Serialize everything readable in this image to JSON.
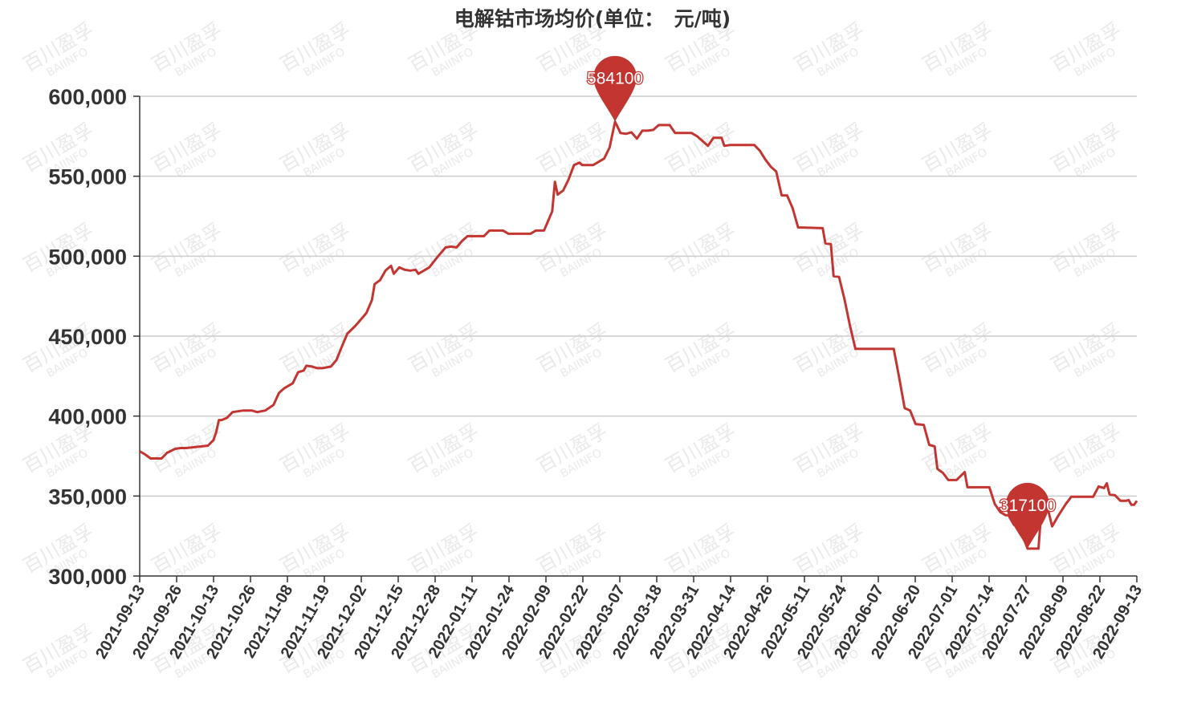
{
  "chart_data": {
    "type": "line",
    "title": "电解钴市场均价(单位：　元/吨)",
    "xlabel": "",
    "ylabel": "",
    "ylim": [
      300000,
      600000
    ],
    "yticks": [
      "300,000",
      "350,000",
      "400,000",
      "450,000",
      "500,000",
      "550,000",
      "600,000"
    ],
    "xticks": [
      "2021-09-13",
      "2021-09-26",
      "2021-10-13",
      "2021-10-26",
      "2021-11-08",
      "2021-11-19",
      "2021-12-02",
      "2021-12-15",
      "2021-12-28",
      "2022-01-11",
      "2022-01-24",
      "2022-02-09",
      "2022-02-22",
      "2022-03-07",
      "2022-03-18",
      "2022-03-31",
      "2022-04-14",
      "2022-04-26",
      "2022-05-11",
      "2022-05-24",
      "2022-06-07",
      "2022-06-20",
      "2022-07-01",
      "2022-07-14",
      "2022-07-27",
      "2022-08-09",
      "2022-08-22",
      "2022-09-13"
    ],
    "grid": true,
    "legend": "none",
    "line_color": "#c23531",
    "series": [
      {
        "name": "",
        "points": [
          [
            "2021-09-13",
            378000
          ],
          [
            "2021-09-15",
            376000
          ],
          [
            "2021-09-17",
            373500
          ],
          [
            "2021-09-21",
            373500
          ],
          [
            "2021-09-23",
            377000
          ],
          [
            "2021-09-26",
            379500
          ],
          [
            "2021-09-28",
            380000
          ],
          [
            "2021-09-30",
            380000
          ],
          [
            "2021-10-08",
            381500
          ],
          [
            "2021-10-10",
            385000
          ],
          [
            "2021-10-11",
            390000
          ],
          [
            "2021-10-12",
            397500
          ],
          [
            "2021-10-13",
            397500
          ],
          [
            "2021-10-15",
            399000
          ],
          [
            "2021-10-17",
            402500
          ],
          [
            "2021-10-21",
            403500
          ],
          [
            "2021-10-24",
            403500
          ],
          [
            "2021-10-26",
            402500
          ],
          [
            "2021-10-29",
            403500
          ],
          [
            "2021-11-01",
            407000
          ],
          [
            "2021-11-03",
            414500
          ],
          [
            "2021-11-05",
            417500
          ],
          [
            "2021-11-08",
            420500
          ],
          [
            "2021-11-10",
            427500
          ],
          [
            "2021-11-12",
            428500
          ],
          [
            "2021-11-13",
            431500
          ],
          [
            "2021-11-15",
            431000
          ],
          [
            "2021-11-17",
            430000
          ],
          [
            "2021-11-19",
            430000
          ],
          [
            "2021-11-22",
            431000
          ],
          [
            "2021-11-24",
            435000
          ],
          [
            "2021-11-26",
            443500
          ],
          [
            "2021-11-28",
            451500
          ],
          [
            "2021-12-01",
            456500
          ],
          [
            "2021-12-03",
            460500
          ],
          [
            "2021-12-05",
            464500
          ],
          [
            "2021-12-07",
            472500
          ],
          [
            "2021-12-08",
            482500
          ],
          [
            "2021-12-10",
            485000
          ],
          [
            "2021-12-12",
            491000
          ],
          [
            "2021-12-14",
            494000
          ],
          [
            "2021-12-15",
            489000
          ],
          [
            "2021-12-17",
            493000
          ],
          [
            "2021-12-19",
            491500
          ],
          [
            "2021-12-21",
            491000
          ],
          [
            "2021-12-23",
            491500
          ],
          [
            "2021-12-24",
            489000
          ],
          [
            "2021-12-28",
            493000
          ],
          [
            "2021-12-31",
            499500
          ],
          [
            "2022-01-03",
            505500
          ],
          [
            "2022-01-05",
            506000
          ],
          [
            "2022-01-07",
            505500
          ],
          [
            "2022-01-09",
            509500
          ],
          [
            "2022-01-11",
            512500
          ],
          [
            "2022-01-14",
            512500
          ],
          [
            "2022-01-17",
            512500
          ],
          [
            "2022-01-19",
            516000
          ],
          [
            "2022-01-24",
            516000
          ],
          [
            "2022-01-26",
            514000
          ],
          [
            "2022-02-03",
            514000
          ],
          [
            "2022-02-05",
            516000
          ],
          [
            "2022-02-08",
            516000
          ],
          [
            "2022-02-11",
            528000
          ],
          [
            "2022-02-12",
            546500
          ],
          [
            "2022-02-13",
            538500
          ],
          [
            "2022-02-15",
            541000
          ],
          [
            "2022-02-17",
            548000
          ],
          [
            "2022-02-19",
            557000
          ],
          [
            "2022-02-21",
            558500
          ],
          [
            "2022-02-22",
            557000
          ],
          [
            "2022-02-26",
            557000
          ],
          [
            "2022-02-28",
            559000
          ],
          [
            "2022-03-02",
            561000
          ],
          [
            "2022-03-04",
            568000
          ],
          [
            "2022-03-06",
            584100
          ],
          [
            "2022-03-08",
            577000
          ],
          [
            "2022-03-10",
            576500
          ],
          [
            "2022-03-12",
            577500
          ],
          [
            "2022-03-14",
            573500
          ],
          [
            "2022-03-16",
            578500
          ],
          [
            "2022-03-18",
            578500
          ],
          [
            "2022-03-20",
            579000
          ],
          [
            "2022-03-22",
            582000
          ],
          [
            "2022-03-26",
            582000
          ],
          [
            "2022-03-28",
            577000
          ],
          [
            "2022-04-03",
            577000
          ],
          [
            "2022-04-05",
            575000
          ],
          [
            "2022-04-07",
            572000
          ],
          [
            "2022-04-09",
            569000
          ],
          [
            "2022-04-11",
            574000
          ],
          [
            "2022-04-14",
            574000
          ],
          [
            "2022-04-15",
            569000
          ],
          [
            "2022-04-17",
            569500
          ],
          [
            "2022-04-26",
            569500
          ],
          [
            "2022-04-28",
            566000
          ],
          [
            "2022-04-30",
            560500
          ],
          [
            "2022-05-02",
            556000
          ],
          [
            "2022-05-04",
            553000
          ],
          [
            "2022-05-06",
            538000
          ],
          [
            "2022-05-08",
            538000
          ],
          [
            "2022-05-10",
            530000
          ],
          [
            "2022-05-12",
            518000
          ],
          [
            "2022-05-21",
            517500
          ],
          [
            "2022-05-22",
            508000
          ],
          [
            "2022-05-24",
            507500
          ],
          [
            "2022-05-25",
            487500
          ],
          [
            "2022-05-27",
            487000
          ],
          [
            "2022-05-29",
            473000
          ],
          [
            "2022-05-31",
            456500
          ],
          [
            "2022-06-02",
            442000
          ],
          [
            "2022-06-16",
            442000
          ],
          [
            "2022-06-18",
            424000
          ],
          [
            "2022-06-20",
            405000
          ],
          [
            "2022-06-22",
            403500
          ],
          [
            "2022-06-24",
            395000
          ],
          [
            "2022-06-27",
            394500
          ],
          [
            "2022-06-29",
            382000
          ],
          [
            "2022-07-01",
            381000
          ],
          [
            "2022-07-02",
            367000
          ],
          [
            "2022-07-04",
            364500
          ],
          [
            "2022-07-06",
            360000
          ],
          [
            "2022-07-09",
            360000
          ],
          [
            "2022-07-12",
            365000
          ],
          [
            "2022-07-13",
            355500
          ],
          [
            "2022-07-14",
            355500
          ],
          [
            "2022-07-21",
            355500
          ],
          [
            "2022-07-23",
            345000
          ],
          [
            "2022-07-25",
            340000
          ],
          [
            "2022-07-27",
            338000
          ],
          [
            "2022-07-28",
            338000
          ],
          [
            "2022-07-29",
            335000
          ],
          [
            "2022-07-30",
            332000
          ],
          [
            "2022-08-01",
            330500
          ],
          [
            "2022-08-04",
            317100
          ],
          [
            "2022-08-08",
            317100
          ],
          [
            "2022-08-09",
            340000
          ],
          [
            "2022-08-11",
            345000
          ],
          [
            "2022-08-13",
            331000
          ],
          [
            "2022-08-15",
            337000
          ],
          [
            "2022-08-18",
            345000
          ],
          [
            "2022-08-20",
            349500
          ],
          [
            "2022-08-22",
            349500
          ],
          [
            "2022-08-28",
            349500
          ],
          [
            "2022-08-30",
            356000
          ],
          [
            "2022-09-01",
            355000
          ],
          [
            "2022-09-02",
            358000
          ],
          [
            "2022-09-03",
            351000
          ],
          [
            "2022-09-05",
            350500
          ],
          [
            "2022-09-07",
            347000
          ],
          [
            "2022-09-09",
            347000
          ],
          [
            "2022-09-10",
            347500
          ],
          [
            "2022-09-11",
            344500
          ],
          [
            "2022-09-12",
            344500
          ],
          [
            "2022-09-13",
            347000
          ]
        ]
      }
    ],
    "mark_points": [
      {
        "type": "max",
        "date": "2022-03-06",
        "value": 584100,
        "label": "584100"
      },
      {
        "type": "min",
        "date": "2022-08-04",
        "value": 317100,
        "label": "317100"
      }
    ]
  },
  "watermark": {
    "text_cn": "百川盈孚",
    "text_en": "BAIINFO"
  }
}
